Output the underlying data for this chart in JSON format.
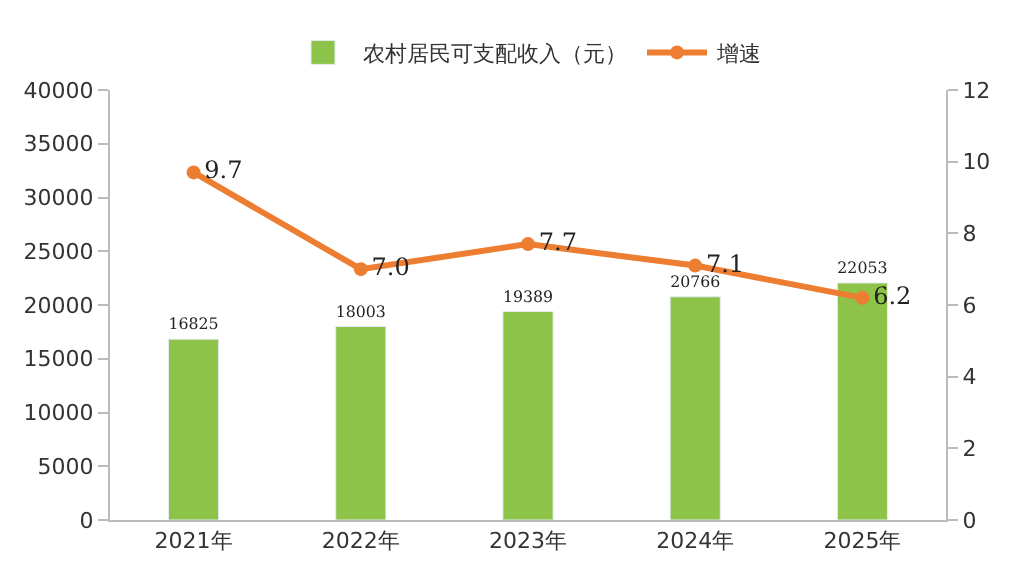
{
  "chart_data": {
    "type": "bar",
    "categories": [
      "2021年",
      "2022年",
      "2023年",
      "2024年",
      "2025年"
    ],
    "series": [
      {
        "name": "农村居民可支配收入（元）",
        "color": "#8dc348",
        "values": [
          16825,
          18003,
          19389,
          20766,
          22053
        ]
      },
      {
        "name": "增速",
        "type": "line",
        "axis": "y2",
        "color": "#ed7d31",
        "marker": "circle",
        "values": [
          9.7,
          7.0,
          7.7,
          7.1,
          6.2
        ],
        "value_labels": [
          "9.7",
          "7.0",
          "7.7",
          "7.1",
          "6.2"
        ]
      }
    ],
    "ylim": [
      0,
      40000
    ],
    "yticks": [
      0,
      5000,
      10000,
      15000,
      20000,
      25000,
      30000,
      35000,
      40000
    ],
    "y2lim": [
      0,
      12
    ],
    "y2ticks": [
      0,
      2,
      4,
      6,
      8,
      10,
      12
    ],
    "data_labels": true,
    "legend": "top"
  }
}
